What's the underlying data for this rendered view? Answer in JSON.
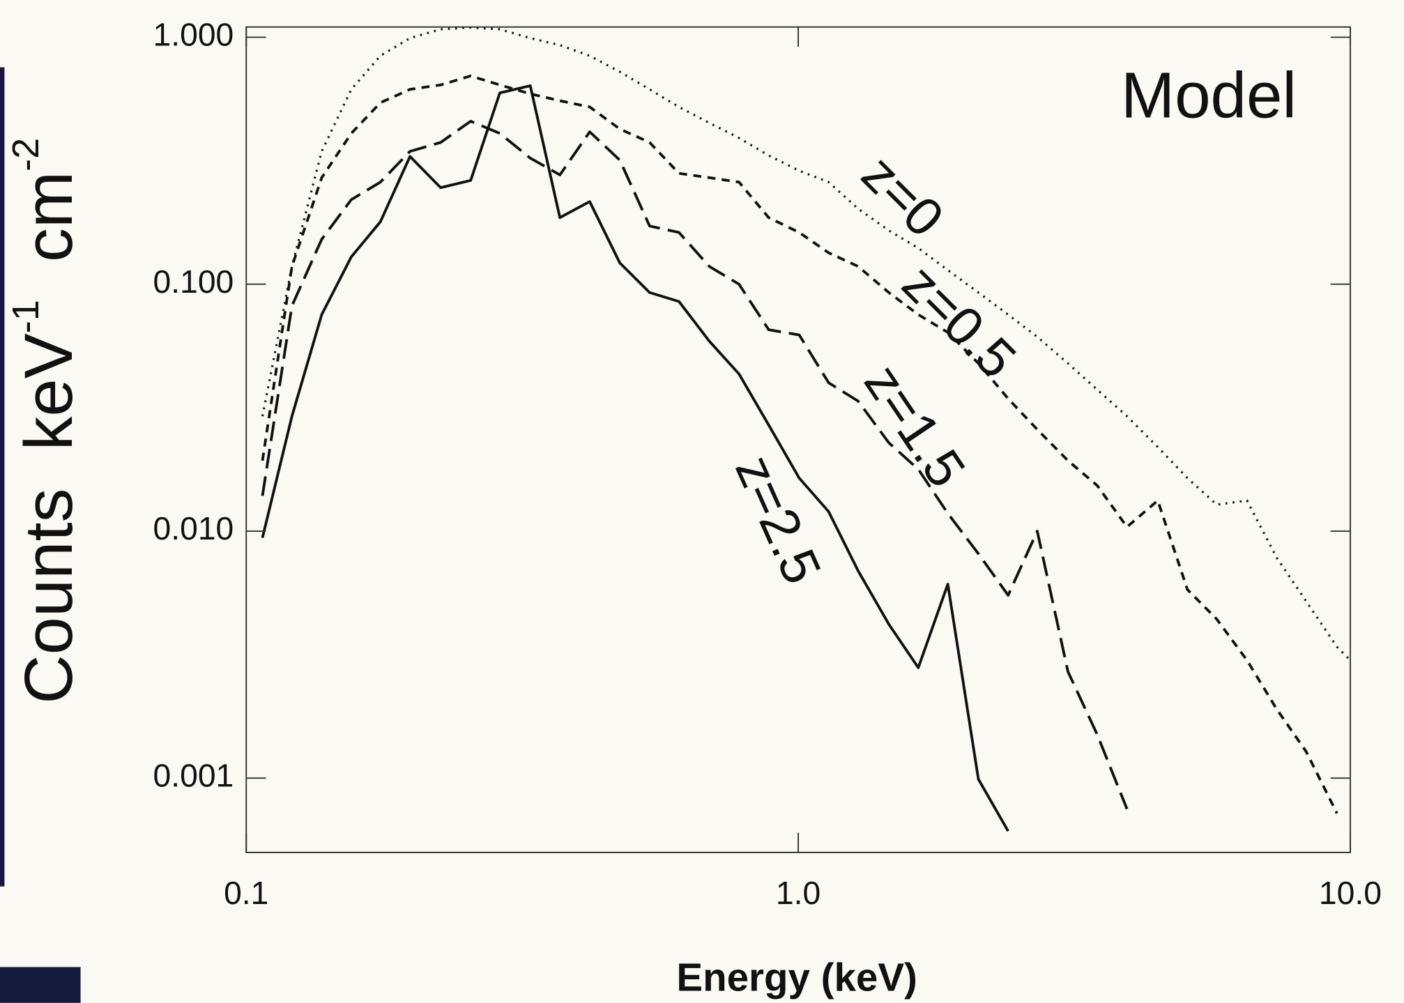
{
  "chart_data": {
    "type": "line",
    "xlabel": "Energy (keV)",
    "ylabel": [
      {
        "text": "Counts  keV"
      },
      {
        "text": "-1",
        "sup": true
      },
      {
        "text": "  cm"
      },
      {
        "text": "-2",
        "sup": true
      }
    ],
    "annotation": "Model",
    "xscale": "log",
    "yscale": "log",
    "xlim": [
      0.1,
      10
    ],
    "ylim": [
      0.0005,
      1.1
    ],
    "xticks": [
      0.1,
      {
        "value": 1,
        "label": "1.0"
      },
      {
        "value": 10,
        "label": "10.0"
      }
    ],
    "yticks": [
      {
        "value": 1,
        "label": "1.000"
      },
      {
        "value": 0.1,
        "label": "0.100"
      },
      {
        "value": 0.01,
        "label": "0.010"
      },
      {
        "value": 0.001,
        "label": "0.001"
      }
    ],
    "x": [
      0.107,
      0.121,
      0.137,
      0.155,
      0.175,
      0.198,
      0.225,
      0.255,
      0.288,
      0.327,
      0.37,
      0.419,
      0.475,
      0.538,
      0.608,
      0.69,
      0.781,
      0.884,
      1.004,
      1.135,
      1.284,
      1.459,
      1.65,
      1.866,
      2.12,
      2.4,
      2.71,
      3.08,
      3.48,
      3.94,
      4.48,
      5.07,
      5.73,
      6.5,
      7.36,
      8.32,
      9.46,
      10
    ],
    "series": [
      {
        "name": "z=0",
        "color": "#111111",
        "dash": "dotted",
        "values": [
          0.0292,
          0.118,
          0.345,
          0.615,
          0.841,
          0.992,
          1.077,
          1.095,
          1.077,
          0.992,
          0.929,
          0.841,
          0.725,
          0.615,
          0.522,
          0.45,
          0.391,
          0.332,
          0.288,
          0.259,
          0.202,
          0.165,
          0.14,
          0.114,
          0.0925,
          0.0753,
          0.0612,
          0.0478,
          0.0374,
          0.0292,
          0.0219,
          0.0164,
          0.0128,
          0.0133,
          0.0078,
          0.0052,
          0.0034,
          0.003
        ]
      },
      {
        "name": "z=0.5",
        "color": "#111111",
        "dash": "short",
        "values": [
          0.0193,
          0.118,
          0.27,
          0.408,
          0.543,
          0.615,
          0.641,
          0.697,
          0.641,
          0.59,
          0.553,
          0.522,
          0.425,
          0.375,
          0.281,
          0.27,
          0.259,
          0.186,
          0.162,
          0.134,
          0.118,
          0.0925,
          0.0753,
          0.0638,
          0.0478,
          0.0344,
          0.0258,
          0.0193,
          0.0153,
          0.0104,
          0.0133,
          0.0058,
          0.0044,
          0.003,
          0.0019,
          0.00128,
          0.00072,
          null
        ]
      },
      {
        "name": "z=1.5",
        "color": "#111111",
        "dash": "long",
        "values": [
          0.0139,
          0.0817,
          0.152,
          0.22,
          0.259,
          0.345,
          0.375,
          0.457,
          0.408,
          0.324,
          0.277,
          0.414,
          0.318,
          0.172,
          0.162,
          0.118,
          0.1,
          0.0654,
          0.0623,
          0.0399,
          0.0336,
          0.0228,
          0.0178,
          0.0118,
          0.0081,
          0.0055,
          0.01,
          0.0027,
          0.0015,
          0.00075,
          null,
          null,
          null,
          null,
          null,
          null,
          null,
          null
        ]
      },
      {
        "name": "z=2.5",
        "color": "#111111",
        "dash": "solid",
        "values": [
          0.0094,
          0.0292,
          0.0753,
          0.129,
          0.179,
          0.329,
          0.246,
          0.263,
          0.595,
          0.636,
          0.186,
          0.216,
          0.122,
          0.0925,
          0.0851,
          0.0588,
          0.0433,
          0.0269,
          0.0164,
          0.012,
          0.0069,
          0.0042,
          0.0028,
          0.0061,
          0.00099,
          0.00061,
          null,
          null,
          null,
          null,
          null,
          null,
          null,
          null,
          null,
          null,
          null,
          null
        ]
      }
    ]
  }
}
